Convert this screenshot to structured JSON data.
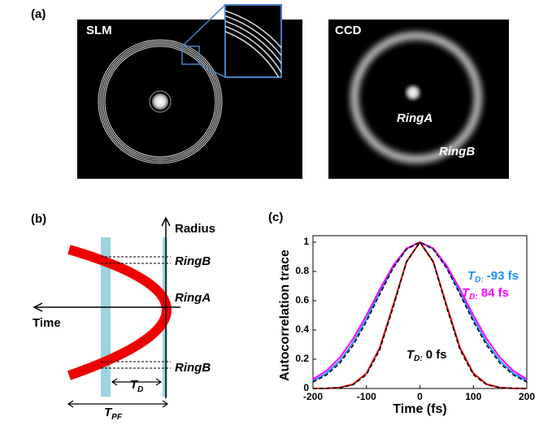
{
  "panel_a": {
    "label": "(a)",
    "slm_label": "SLM",
    "ccd_label": "CCD",
    "ring_a": "RingA",
    "ring_b": "RingB"
  },
  "panel_b": {
    "label": "(b)",
    "radius": "Radius",
    "time": "Time",
    "ring_b_top": "RingB",
    "ring_a": "RingA",
    "ring_b_bottom": "RingB",
    "td_symbol": "T",
    "td_subscript": "D",
    "tpf_symbol": "T",
    "tpf_subscript": "PF"
  },
  "chart_data": {
    "type": "line",
    "label": "(c)",
    "ylabel": "Autocorrelation trace",
    "xlabel": "Time (fs)",
    "x": [
      -200,
      -175,
      -150,
      -125,
      -100,
      -75,
      -50,
      -25,
      0,
      25,
      50,
      75,
      100,
      125,
      150,
      175,
      200
    ],
    "series": [
      {
        "color": "#1e90ff",
        "dash": false,
        "values": [
          0.051,
          0.103,
          0.188,
          0.313,
          0.475,
          0.658,
          0.83,
          0.954,
          1,
          0.954,
          0.83,
          0.658,
          0.475,
          0.313,
          0.188,
          0.103,
          0.051
        ]
      },
      {
        "color": "#ff00ff",
        "dash": false,
        "values": [
          0.063,
          0.12,
          0.211,
          0.339,
          0.501,
          0.678,
          0.841,
          0.958,
          1,
          0.958,
          0.841,
          0.678,
          0.501,
          0.339,
          0.211,
          0.12,
          0.063
        ]
      },
      {
        "color": "#000000",
        "dash": true,
        "values": [
          0.044,
          0.092,
          0.172,
          0.295,
          0.458,
          0.644,
          0.823,
          0.952,
          1,
          0.952,
          0.823,
          0.644,
          0.458,
          0.295,
          0.172,
          0.092,
          0.044
        ]
      },
      {
        "color": "#e00000",
        "dash": false,
        "values": [
          0,
          0.001,
          0.006,
          0.029,
          0.104,
          0.279,
          0.568,
          0.868,
          1,
          0.868,
          0.568,
          0.279,
          0.104,
          0.029,
          0.006,
          0.001,
          0
        ]
      },
      {
        "color": "#000000",
        "dash": true,
        "values": [
          0,
          0.001,
          0.005,
          0.025,
          0.094,
          0.265,
          0.554,
          0.863,
          1,
          0.863,
          0.554,
          0.265,
          0.094,
          0.025,
          0.005,
          0.001,
          0
        ]
      }
    ],
    "annotations": [
      {
        "symbol": "T",
        "subscript": "D:",
        "text": "-93 fs",
        "color": "#1e90ff"
      },
      {
        "symbol": "T",
        "subscript": "D:",
        "text": "84 fs",
        "color": "#ff00ff"
      },
      {
        "symbol": "T",
        "subscript": "D:",
        "text": "0 fs",
        "color": "#000000"
      }
    ],
    "xlim": [
      -200,
      200
    ],
    "ylim": [
      0,
      1
    ],
    "xticks": [
      -200,
      -100,
      0,
      100,
      200
    ],
    "yticks": [
      0,
      0.2,
      0.4,
      0.6,
      0.8,
      1
    ]
  }
}
